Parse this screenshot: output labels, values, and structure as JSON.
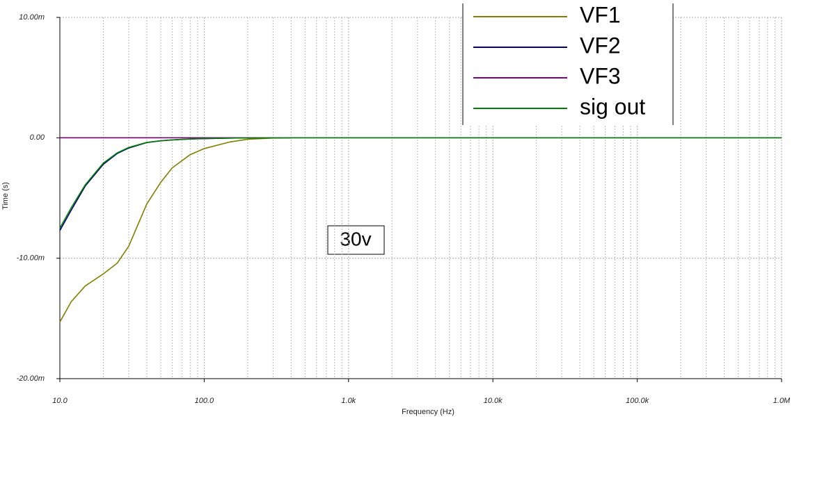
{
  "chart_data": {
    "type": "line",
    "xlabel": "Frequency (Hz)",
    "ylabel": "Time (s)",
    "annotation": "30v",
    "xscale": "log",
    "grid": true,
    "legend": "top",
    "x": [
      10,
      12,
      15,
      20,
      25,
      30,
      40,
      50,
      60,
      80,
      100,
      150,
      200,
      300,
      400,
      1000000
    ],
    "series": [
      {
        "name": "VF1",
        "color": "#808000",
        "values": [
          -15.3,
          -13.6,
          -12.3,
          -11.3,
          -10.4,
          -9.0,
          -5.5,
          -3.7,
          -2.5,
          -1.4,
          -0.9,
          -0.35,
          -0.12,
          -0.02,
          0,
          null
        ]
      },
      {
        "name": "VF2",
        "color": "#000080",
        "values": [
          -7.7,
          -6.0,
          -4.0,
          -2.2,
          -1.3,
          -0.85,
          -0.4,
          -0.25,
          -0.18,
          -0.1,
          -0.07,
          -0.03,
          -0.01,
          0,
          0,
          null
        ]
      },
      {
        "name": "VF3",
        "color": "#800080",
        "values": [
          0,
          0,
          0,
          0,
          0,
          0,
          0,
          0,
          0,
          0,
          0,
          0,
          0,
          0,
          0,
          0
        ]
      },
      {
        "name": "sig out",
        "color": "#008000",
        "values": [
          -7.5,
          -5.8,
          -3.9,
          -2.1,
          -1.25,
          -0.8,
          -0.38,
          -0.24,
          -0.17,
          -0.1,
          -0.06,
          -0.03,
          -0.01,
          0,
          0,
          0
        ]
      }
    ],
    "xlim": [
      10,
      1000000
    ],
    "xticks": [
      {
        "value": 10,
        "label": "10.0"
      },
      {
        "value": 100,
        "label": "100.0"
      },
      {
        "value": 1000,
        "label": "1.0k"
      },
      {
        "value": 10000,
        "label": "10.0k"
      },
      {
        "value": 100000,
        "label": "100.0k"
      },
      {
        "value": 1000000,
        "label": "1.0M"
      }
    ],
    "ylim": [
      -20,
      10
    ],
    "yticks": [
      {
        "value": -20,
        "label": "-20.00m"
      },
      {
        "value": -10,
        "label": "-10.00m"
      },
      {
        "value": 0,
        "label": "0.00"
      },
      {
        "value": 10,
        "label": "10.00m"
      }
    ]
  }
}
